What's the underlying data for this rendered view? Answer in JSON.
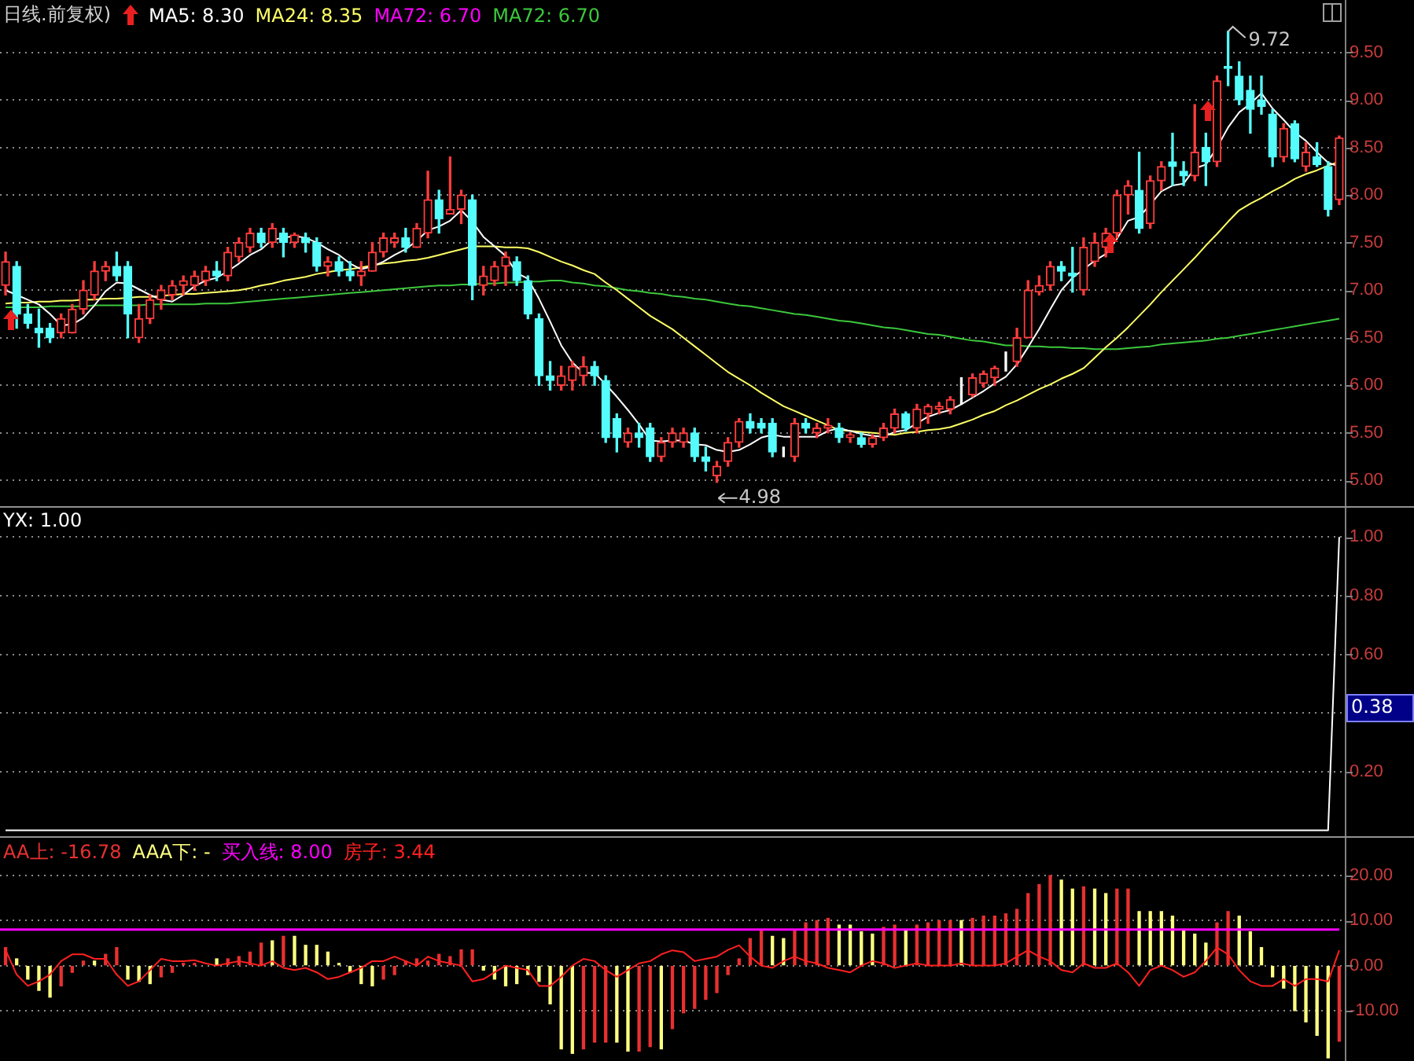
{
  "chart_data": [
    {
      "type": "candlestick",
      "title": "日线.前复权)",
      "legend": "top left",
      "grid": "y",
      "tick_labels": "y",
      "categories": [
        null,
        null,
        null,
        null,
        null,
        null,
        null,
        null,
        null,
        null,
        null,
        null,
        null,
        null,
        null,
        null,
        null,
        null,
        null,
        null,
        null,
        null,
        null,
        null,
        null,
        null,
        null,
        null,
        null,
        null,
        null,
        null,
        null,
        null,
        null,
        null,
        null,
        null,
        null,
        null,
        null,
        null,
        null,
        null,
        null,
        null,
        null,
        null,
        null,
        null,
        null,
        null,
        null,
        null,
        null,
        null,
        null,
        null,
        null,
        null,
        null,
        null,
        null,
        null,
        null,
        null,
        null,
        null,
        null,
        null,
        null,
        null,
        null,
        null,
        null,
        null,
        null,
        null,
        null,
        null,
        null,
        null,
        null,
        null,
        null,
        null,
        null,
        null,
        null,
        null,
        null,
        null,
        null,
        null,
        null,
        null,
        null,
        null,
        null,
        null,
        null,
        null,
        null,
        null,
        null,
        null,
        null,
        null,
        null,
        null,
        null,
        null,
        null,
        null,
        null,
        null,
        null,
        null,
        null,
        null,
        null
      ],
      "ohlc": [
        [
          7.05,
          7.4,
          6.95,
          7.3
        ],
        [
          7.25,
          7.3,
          6.6,
          6.75
        ],
        [
          6.75,
          6.85,
          6.6,
          6.65
        ],
        [
          6.6,
          6.8,
          6.4,
          6.55
        ],
        [
          6.6,
          6.65,
          6.45,
          6.5
        ],
        [
          6.55,
          6.75,
          6.5,
          6.7
        ],
        [
          6.55,
          6.85,
          6.55,
          6.8
        ],
        [
          6.8,
          7.1,
          6.75,
          7.0
        ],
        [
          6.95,
          7.3,
          6.9,
          7.2
        ],
        [
          7.2,
          7.3,
          7.1,
          7.25
        ],
        [
          7.25,
          7.4,
          7.1,
          7.15
        ],
        [
          7.25,
          7.3,
          6.5,
          6.75
        ],
        [
          6.5,
          6.85,
          6.45,
          6.7
        ],
        [
          6.7,
          6.95,
          6.65,
          6.9
        ],
        [
          6.9,
          7.05,
          6.8,
          7.0
        ],
        [
          6.95,
          7.1,
          6.9,
          7.05
        ],
        [
          7.05,
          7.15,
          6.95,
          7.1
        ],
        [
          7.05,
          7.2,
          7.0,
          7.15
        ],
        [
          7.1,
          7.25,
          7.05,
          7.2
        ],
        [
          7.2,
          7.3,
          7.1,
          7.15
        ],
        [
          7.15,
          7.45,
          7.1,
          7.4
        ],
        [
          7.35,
          7.55,
          7.3,
          7.5
        ],
        [
          7.45,
          7.65,
          7.4,
          7.6
        ],
        [
          7.6,
          7.65,
          7.45,
          7.5
        ],
        [
          7.5,
          7.7,
          7.45,
          7.65
        ],
        [
          7.6,
          7.65,
          7.35,
          7.5
        ],
        [
          7.5,
          7.6,
          7.45,
          7.58
        ],
        [
          7.55,
          7.6,
          7.4,
          7.5
        ],
        [
          7.5,
          7.55,
          7.2,
          7.25
        ],
        [
          7.25,
          7.35,
          7.15,
          7.3
        ],
        [
          7.3,
          7.35,
          7.15,
          7.2
        ],
        [
          7.2,
          7.3,
          7.1,
          7.15
        ],
        [
          7.15,
          7.3,
          7.05,
          7.2
        ],
        [
          7.2,
          7.5,
          7.2,
          7.4
        ],
        [
          7.4,
          7.6,
          7.35,
          7.55
        ],
        [
          7.5,
          7.6,
          7.45,
          7.55
        ],
        [
          7.55,
          7.65,
          7.4,
          7.45
        ],
        [
          7.45,
          7.7,
          7.45,
          7.65
        ],
        [
          7.6,
          8.25,
          7.55,
          7.95
        ],
        [
          7.95,
          8.05,
          7.6,
          7.75
        ],
        [
          7.8,
          8.4,
          7.8,
          7.85
        ],
        [
          7.85,
          8.05,
          7.7,
          8.0
        ],
        [
          7.95,
          8.0,
          6.9,
          7.05
        ],
        [
          7.05,
          7.25,
          6.95,
          7.15
        ],
        [
          7.1,
          7.3,
          7.05,
          7.25
        ],
        [
          7.25,
          7.4,
          7.05,
          7.35
        ],
        [
          7.3,
          7.35,
          7.05,
          7.1
        ],
        [
          7.1,
          7.15,
          6.7,
          6.75
        ],
        [
          6.7,
          6.75,
          6.0,
          6.1
        ],
        [
          6.1,
          6.25,
          5.95,
          6.05
        ],
        [
          6.0,
          6.2,
          5.95,
          6.1
        ],
        [
          6.05,
          6.25,
          5.95,
          6.2
        ],
        [
          6.1,
          6.3,
          6.0,
          6.2
        ],
        [
          6.2,
          6.25,
          6.0,
          6.1
        ],
        [
          6.05,
          6.1,
          5.4,
          5.45
        ],
        [
          5.65,
          5.7,
          5.3,
          5.45
        ],
        [
          5.4,
          5.55,
          5.35,
          5.5
        ],
        [
          5.5,
          5.6,
          5.35,
          5.45
        ],
        [
          5.55,
          5.6,
          5.2,
          5.25
        ],
        [
          5.25,
          5.45,
          5.2,
          5.4
        ],
        [
          5.4,
          5.55,
          5.35,
          5.5
        ],
        [
          5.4,
          5.55,
          5.35,
          5.5
        ],
        [
          5.5,
          5.55,
          5.2,
          5.25
        ],
        [
          5.25,
          5.35,
          5.1,
          5.2
        ],
        [
          5.05,
          5.2,
          4.98,
          5.15
        ],
        [
          5.2,
          5.45,
          5.15,
          5.4
        ],
        [
          5.4,
          5.65,
          5.35,
          5.62
        ],
        [
          5.62,
          5.7,
          5.5,
          5.55
        ],
        [
          5.6,
          5.65,
          5.5,
          5.55
        ],
        [
          5.6,
          5.65,
          5.25,
          5.3
        ],
        [
          5.3,
          5.35,
          5.25,
          5.3
        ],
        [
          5.25,
          5.65,
          5.2,
          5.6
        ],
        [
          5.6,
          5.65,
          5.5,
          5.55
        ],
        [
          5.5,
          5.6,
          5.45,
          5.55
        ],
        [
          5.55,
          5.65,
          5.5,
          5.58
        ],
        [
          5.55,
          5.6,
          5.4,
          5.45
        ],
        [
          5.45,
          5.5,
          5.4,
          5.48
        ],
        [
          5.45,
          5.5,
          5.35,
          5.38
        ],
        [
          5.38,
          5.48,
          5.35,
          5.45
        ],
        [
          5.45,
          5.6,
          5.42,
          5.55
        ],
        [
          5.55,
          5.75,
          5.5,
          5.7
        ],
        [
          5.7,
          5.72,
          5.52,
          5.55
        ],
        [
          5.55,
          5.8,
          5.5,
          5.75
        ],
        [
          5.7,
          5.8,
          5.6,
          5.78
        ],
        [
          5.75,
          5.82,
          5.7,
          5.78
        ],
        [
          5.75,
          5.88,
          5.7,
          5.85
        ],
        [
          5.85,
          6.08,
          5.8,
          5.85
        ],
        [
          5.9,
          6.12,
          5.88,
          6.08
        ],
        [
          6.02,
          6.15,
          5.98,
          6.12
        ],
        [
          6.08,
          6.2,
          6.0,
          6.18
        ],
        [
          6.2,
          6.35,
          6.15,
          6.2
        ],
        [
          6.25,
          6.6,
          6.2,
          6.5
        ],
        [
          6.5,
          7.1,
          6.5,
          7.0
        ],
        [
          6.98,
          7.15,
          6.95,
          7.05
        ],
        [
          7.05,
          7.3,
          7.0,
          7.25
        ],
        [
          7.25,
          7.3,
          7.1,
          7.2
        ],
        [
          7.18,
          7.45,
          6.98,
          7.15
        ],
        [
          7.0,
          7.55,
          6.95,
          7.45
        ],
        [
          7.3,
          7.6,
          7.25,
          7.5
        ],
        [
          7.45,
          7.65,
          7.35,
          7.6
        ],
        [
          7.6,
          8.05,
          7.55,
          8.0
        ],
        [
          8.0,
          8.15,
          7.8,
          8.1
        ],
        [
          8.05,
          8.45,
          7.6,
          7.65
        ],
        [
          7.7,
          8.2,
          7.65,
          8.15
        ],
        [
          8.15,
          8.35,
          8.05,
          8.3
        ],
        [
          8.35,
          8.65,
          8.1,
          8.3
        ],
        [
          8.25,
          8.35,
          8.1,
          8.2
        ],
        [
          8.2,
          8.95,
          8.15,
          8.45
        ],
        [
          8.5,
          8.65,
          8.1,
          8.35
        ],
        [
          8.35,
          9.25,
          8.3,
          9.2
        ],
        [
          9.35,
          9.72,
          9.15,
          9.33
        ],
        [
          9.25,
          9.4,
          8.95,
          9.0
        ],
        [
          9.1,
          9.25,
          8.65,
          8.9
        ],
        [
          9.0,
          9.25,
          8.85,
          8.93
        ],
        [
          8.85,
          8.9,
          8.3,
          8.4
        ],
        [
          8.4,
          8.75,
          8.35,
          8.7
        ],
        [
          8.75,
          8.78,
          8.35,
          8.38
        ],
        [
          8.3,
          8.55,
          8.25,
          8.45
        ],
        [
          8.4,
          8.55,
          8.3,
          8.32
        ],
        [
          8.3,
          8.35,
          7.78,
          7.85
        ],
        [
          7.95,
          8.62,
          7.9,
          8.6
        ]
      ],
      "series": [
        {
          "name": "MA5: 8.30",
          "type": "line",
          "color": "#ffffff",
          "values": [
            7.0,
            6.95,
            6.9,
            6.85,
            6.75,
            6.63,
            6.64,
            6.71,
            6.84,
            6.99,
            7.08,
            7.07,
            7.01,
            6.95,
            6.9,
            6.88,
            6.95,
            7.04,
            7.1,
            7.13,
            7.2,
            7.28,
            7.37,
            7.43,
            7.53,
            7.55,
            7.57,
            7.55,
            7.5,
            7.43,
            7.37,
            7.28,
            7.22,
            7.25,
            7.3,
            7.37,
            7.43,
            7.52,
            7.63,
            7.67,
            7.73,
            7.84,
            7.72,
            7.56,
            7.46,
            7.36,
            7.18,
            7.12,
            6.91,
            6.67,
            6.42,
            6.24,
            6.13,
            6.13,
            6.01,
            5.88,
            5.74,
            5.59,
            5.42,
            5.41,
            5.42,
            5.42,
            5.38,
            5.37,
            5.32,
            5.3,
            5.32,
            5.38,
            5.45,
            5.48,
            5.46,
            5.46,
            5.46,
            5.46,
            5.52,
            5.55,
            5.52,
            5.49,
            5.47,
            5.46,
            5.51,
            5.53,
            5.6,
            5.67,
            5.71,
            5.74,
            5.8,
            5.87,
            5.94,
            6.02,
            6.09,
            6.22,
            6.4,
            6.59,
            6.8,
            7.0,
            7.13,
            7.22,
            7.31,
            7.38,
            7.54,
            7.73,
            7.77,
            7.9,
            8.04,
            8.1,
            8.12,
            8.28,
            8.32,
            8.5,
            8.71,
            8.87,
            8.96,
            9.07,
            8.91,
            8.79,
            8.66,
            8.57,
            8.45,
            8.34,
            8.3
          ]
        },
        {
          "name": "MA24: 8.35",
          "type": "line",
          "color": "#ffff66",
          "values": [
            6.86,
            6.87,
            6.87,
            6.88,
            6.88,
            6.89,
            6.89,
            6.9,
            6.9,
            6.91,
            6.91,
            6.92,
            6.93,
            6.93,
            6.94,
            6.95,
            6.96,
            6.96,
            6.97,
            6.98,
            6.99,
            7.0,
            7.02,
            7.05,
            7.07,
            7.1,
            7.12,
            7.14,
            7.17,
            7.19,
            7.21,
            7.22,
            7.24,
            7.26,
            7.28,
            7.29,
            7.31,
            7.32,
            7.34,
            7.37,
            7.4,
            7.43,
            7.46,
            7.46,
            7.46,
            7.45,
            7.45,
            7.44,
            7.4,
            7.35,
            7.3,
            7.26,
            7.21,
            7.17,
            7.08,
            7.0,
            6.91,
            6.82,
            6.73,
            6.66,
            6.59,
            6.5,
            6.41,
            6.32,
            6.23,
            6.14,
            6.07,
            6.0,
            5.92,
            5.85,
            5.78,
            5.73,
            5.68,
            5.63,
            5.58,
            5.53,
            5.52,
            5.51,
            5.5,
            5.49,
            5.48,
            5.5,
            5.51,
            5.53,
            5.54,
            5.56,
            5.6,
            5.64,
            5.69,
            5.73,
            5.79,
            5.84,
            5.9,
            5.96,
            6.01,
            6.07,
            6.12,
            6.18,
            6.29,
            6.4,
            6.5,
            6.61,
            6.73,
            6.85,
            6.98,
            7.1,
            7.22,
            7.34,
            7.47,
            7.59,
            7.72,
            7.84,
            7.91,
            7.97,
            8.04,
            8.1,
            8.17,
            8.22,
            8.26,
            8.31,
            8.35
          ]
        },
        {
          "name": "MA72: 6.70",
          "type": "line",
          "color": "#3cc83c",
          "values": [
            6.82,
            6.82,
            6.82,
            6.82,
            6.83,
            6.83,
            6.83,
            6.83,
            6.84,
            6.84,
            6.84,
            6.84,
            6.84,
            6.85,
            6.85,
            6.85,
            6.85,
            6.85,
            6.86,
            6.86,
            6.86,
            6.87,
            6.88,
            6.89,
            6.9,
            6.91,
            6.92,
            6.93,
            6.94,
            6.95,
            6.96,
            6.97,
            6.98,
            6.99,
            7.0,
            7.01,
            7.02,
            7.03,
            7.04,
            7.05,
            7.05,
            7.06,
            7.06,
            7.07,
            7.07,
            7.08,
            7.08,
            7.09,
            7.09,
            7.1,
            7.1,
            7.08,
            7.07,
            7.05,
            7.04,
            7.02,
            7.0,
            6.99,
            6.97,
            6.96,
            6.94,
            6.93,
            6.91,
            6.9,
            6.88,
            6.86,
            6.84,
            6.83,
            6.81,
            6.79,
            6.77,
            6.75,
            6.74,
            6.72,
            6.7,
            6.68,
            6.67,
            6.65,
            6.63,
            6.61,
            6.6,
            6.58,
            6.56,
            6.54,
            6.53,
            6.51,
            6.49,
            6.47,
            6.46,
            6.44,
            6.42,
            6.42,
            6.41,
            6.41,
            6.4,
            6.4,
            6.39,
            6.39,
            6.38,
            6.38,
            6.38,
            6.39,
            6.4,
            6.41,
            6.43,
            6.44,
            6.45,
            6.46,
            6.47,
            6.49,
            6.5,
            6.52,
            6.54,
            6.56,
            6.58,
            6.6,
            6.62,
            6.64,
            6.66,
            6.68,
            6.7
          ]
        }
      ],
      "annotations": [
        "MA72: 6.70",
        "9.72",
        "4.98"
      ],
      "ylim": [
        4.73,
        10.05
      ],
      "yticks": [
        {
          "value": 5,
          "label": "5.00"
        },
        {
          "value": 5.5,
          "label": "5.50"
        },
        {
          "value": 6,
          "label": "6.00"
        },
        {
          "value": 6.5,
          "label": "6.50"
        },
        {
          "value": 7,
          "label": "7.00"
        },
        {
          "value": 7.5,
          "label": "7.50"
        },
        {
          "value": 8,
          "label": "8.00"
        },
        {
          "value": 8.5,
          "label": "8.50"
        },
        {
          "value": 9,
          "label": "9.00"
        },
        {
          "value": 9.5,
          "label": "9.50"
        }
      ]
    },
    {
      "type": "line",
      "legend": "top left",
      "grid": "y",
      "tick_labels": "y",
      "categories": [
        null,
        null,
        null,
        null,
        null,
        null,
        null,
        null,
        null,
        null,
        null,
        null,
        null,
        null,
        null,
        null,
        null,
        null,
        null,
        null,
        null,
        null,
        null,
        null,
        null,
        null,
        null,
        null,
        null,
        null,
        null,
        null,
        null,
        null,
        null,
        null,
        null,
        null,
        null,
        null,
        null,
        null,
        null,
        null,
        null,
        null,
        null,
        null,
        null,
        null,
        null,
        null,
        null,
        null,
        null,
        null,
        null,
        null,
        null,
        null,
        null,
        null,
        null,
        null,
        null,
        null,
        null,
        null,
        null,
        null,
        null,
        null,
        null,
        null,
        null,
        null,
        null,
        null,
        null,
        null,
        null,
        null,
        null,
        null,
        null,
        null,
        null,
        null,
        null,
        null,
        null,
        null,
        null,
        null,
        null,
        null,
        null,
        null,
        null,
        null,
        null,
        null,
        null,
        null,
        null,
        null,
        null,
        null,
        null,
        null,
        null,
        null,
        null,
        null,
        null,
        null,
        null,
        null,
        null,
        null,
        null
      ],
      "series": [
        {
          "name": "YX: 1.00",
          "color": "#ffffff",
          "values": [
            0,
            0,
            0,
            0,
            0,
            0,
            0,
            0,
            0,
            0,
            0,
            0,
            0,
            0,
            0,
            0,
            0,
            0,
            0,
            0,
            0,
            0,
            0,
            0,
            0,
            0,
            0,
            0,
            0,
            0,
            0,
            0,
            0,
            0,
            0,
            0,
            0,
            0,
            0,
            0,
            0,
            0,
            0,
            0,
            0,
            0,
            0,
            0,
            0,
            0,
            0,
            0,
            0,
            0,
            0,
            0,
            0,
            0,
            0,
            0,
            0,
            0,
            0,
            0,
            0,
            0,
            0,
            0,
            0,
            0,
            0,
            0,
            0,
            0,
            0,
            0,
            0,
            0,
            0,
            0,
            0,
            0,
            0,
            0,
            0,
            0,
            0,
            0,
            0,
            0,
            0,
            0,
            0,
            0,
            0,
            0,
            0,
            0,
            0,
            0,
            0,
            0,
            0,
            0,
            0,
            0,
            0,
            0,
            0,
            0,
            0,
            0,
            0,
            0,
            0,
            0,
            0,
            0,
            0,
            0,
            1.0
          ]
        }
      ],
      "annotations": [
        "0.38"
      ],
      "ylim": [
        -0.02,
        1.1
      ],
      "yticks": [
        {
          "value": 0.2,
          "label": "0.20"
        },
        {
          "value": 0.4,
          "label": null
        },
        {
          "value": 0.6,
          "label": "0.60"
        },
        {
          "value": 0.8,
          "label": "0.80"
        },
        {
          "value": 1,
          "label": "1.00"
        }
      ]
    },
    {
      "type": "bar",
      "legend": "top left",
      "grid": "y",
      "tick_labels": "y",
      "categories": [
        null,
        null,
        null,
        null,
        null,
        null,
        null,
        null,
        null,
        null,
        null,
        null,
        null,
        null,
        null,
        null,
        null,
        null,
        null,
        null,
        null,
        null,
        null,
        null,
        null,
        null,
        null,
        null,
        null,
        null,
        null,
        null,
        null,
        null,
        null,
        null,
        null,
        null,
        null,
        null,
        null,
        null,
        null,
        null,
        null,
        null,
        null,
        null,
        null,
        null,
        null,
        null,
        null,
        null,
        null,
        null,
        null,
        null,
        null,
        null,
        null,
        null,
        null,
        null,
        null,
        null,
        null,
        null,
        null,
        null,
        null,
        null,
        null,
        null,
        null,
        null,
        null,
        null,
        null,
        null,
        null,
        null,
        null,
        null,
        null,
        null,
        null,
        null,
        null,
        null,
        null,
        null,
        null,
        null,
        null,
        null,
        null,
        null,
        null,
        null,
        null,
        null,
        null,
        null,
        null,
        null,
        null,
        null,
        null,
        null,
        null,
        null,
        null,
        null,
        null,
        null,
        null,
        null,
        null,
        null,
        null
      ],
      "series": [
        {
          "name": "AA上: -16.78",
          "color": "#e83030",
          "values": [
            4,
            null,
            null,
            null,
            null,
            -4.5,
            -1.5,
            1,
            null,
            2.5,
            4,
            null,
            null,
            null,
            -2.5,
            -1.5,
            0.5,
            0.5,
            null,
            null,
            1.5,
            2,
            3,
            5,
            null,
            6.5,
            null,
            null,
            null,
            null,
            null,
            null,
            null,
            null,
            -3,
            -2,
            1,
            1.5,
            1,
            2.5,
            2,
            3.5,
            3.5,
            null,
            null,
            null,
            null,
            null,
            null,
            null,
            null,
            null,
            -18.5,
            -17,
            -17,
            null,
            null,
            -19,
            -18,
            null,
            -14,
            -10.5,
            -9.5,
            -7.5,
            -6,
            -2,
            1.5,
            6,
            8,
            null,
            null,
            8,
            9.5,
            10,
            10.5,
            null,
            null,
            null,
            null,
            8.5,
            9,
            null,
            9,
            9.5,
            10,
            10,
            null,
            10.5,
            11,
            11,
            11.5,
            12.5,
            16,
            18,
            20,
            null,
            null,
            17.5,
            null,
            null,
            17,
            17,
            null,
            null,
            null,
            null,
            null,
            null,
            null,
            9.5,
            12,
            null,
            null,
            null,
            null,
            null,
            null,
            null,
            null,
            null,
            -16.8
          ]
        },
        {
          "name": "AAA下: -",
          "color": "#ffff80",
          "values": [
            null,
            1.5,
            -3,
            -5.5,
            -7,
            null,
            null,
            null,
            1,
            null,
            null,
            -3,
            -3.5,
            -4,
            null,
            null,
            null,
            null,
            null,
            1.5,
            null,
            null,
            null,
            null,
            5.5,
            null,
            6.5,
            4.5,
            4.5,
            3,
            0.5,
            -1.5,
            -4,
            -4.5,
            null,
            null,
            null,
            null,
            null,
            null,
            null,
            null,
            null,
            -1,
            -3,
            -4.5,
            -4,
            -2,
            -3.5,
            -8.5,
            -18.5,
            -19.5,
            null,
            null,
            null,
            -17,
            -19,
            null,
            null,
            -18.5,
            null,
            null,
            null,
            null,
            null,
            null,
            null,
            null,
            null,
            6.5,
            6,
            null,
            null,
            null,
            null,
            9,
            9,
            7.5,
            7,
            null,
            null,
            8,
            null,
            null,
            null,
            null,
            10,
            null,
            null,
            null,
            null,
            null,
            null,
            null,
            null,
            19,
            17,
            null,
            17,
            16,
            null,
            null,
            12,
            12,
            12,
            11,
            8,
            7,
            5,
            null,
            null,
            11,
            7.5,
            4,
            -2.5,
            -5,
            -10,
            -12.5,
            -15.5,
            -20.5,
            null
          ]
        },
        {
          "name": "房子: 3.44",
          "type": "line",
          "color": "#ff2020",
          "values": [
            3.5,
            -2,
            -4.5,
            -3.5,
            -2,
            1,
            2.5,
            2.5,
            1.5,
            1.5,
            -2,
            -4.5,
            -3.5,
            -1,
            1.5,
            1,
            1,
            1.2,
            0.5,
            0,
            0.5,
            1,
            0.5,
            0,
            1,
            -0.5,
            -1,
            -0.5,
            -1.5,
            -3,
            -2.5,
            -1.5,
            -0.5,
            1,
            1,
            2,
            1,
            0,
            2,
            1,
            0.5,
            0,
            -3.5,
            -3,
            -1.5,
            0,
            -0.5,
            -1,
            -4.5,
            -4.5,
            -2.5,
            0,
            1.5,
            1,
            -1,
            -2.5,
            -1,
            0.5,
            1,
            2.5,
            3.4,
            3,
            1,
            1.5,
            2,
            3.5,
            4.5,
            2,
            0,
            -0.5,
            1,
            2,
            1,
            0.5,
            -0.5,
            -1,
            -1.5,
            0,
            1,
            0.5,
            -0.5,
            0,
            0.5,
            0,
            0,
            0,
            0.5,
            0,
            0,
            0,
            0.5,
            2,
            3.4,
            2,
            1,
            -1,
            -1.5,
            0.5,
            -0.5,
            -0.5,
            0.5,
            -1.5,
            -4.5,
            -1,
            0,
            -1,
            -2.5,
            -1.5,
            1,
            4,
            2.5,
            -1,
            -3.5,
            -4.5,
            -4.5,
            -3,
            -4.5,
            -3,
            -3,
            -3.5,
            3.4
          ]
        }
      ],
      "ref_lines": [
        {
          "axis": "y",
          "value": 8,
          "label": "买入线: 8.00",
          "color": "#ff00ff"
        }
      ],
      "ylim": [
        -21.2,
        28.4
      ],
      "yticks": [
        {
          "value": -10,
          "label": "-10.00"
        },
        {
          "value": 0,
          "label": "0.00"
        },
        {
          "value": 10,
          "label": "10.00"
        },
        {
          "value": 20,
          "label": "20.00"
        }
      ]
    }
  ]
}
